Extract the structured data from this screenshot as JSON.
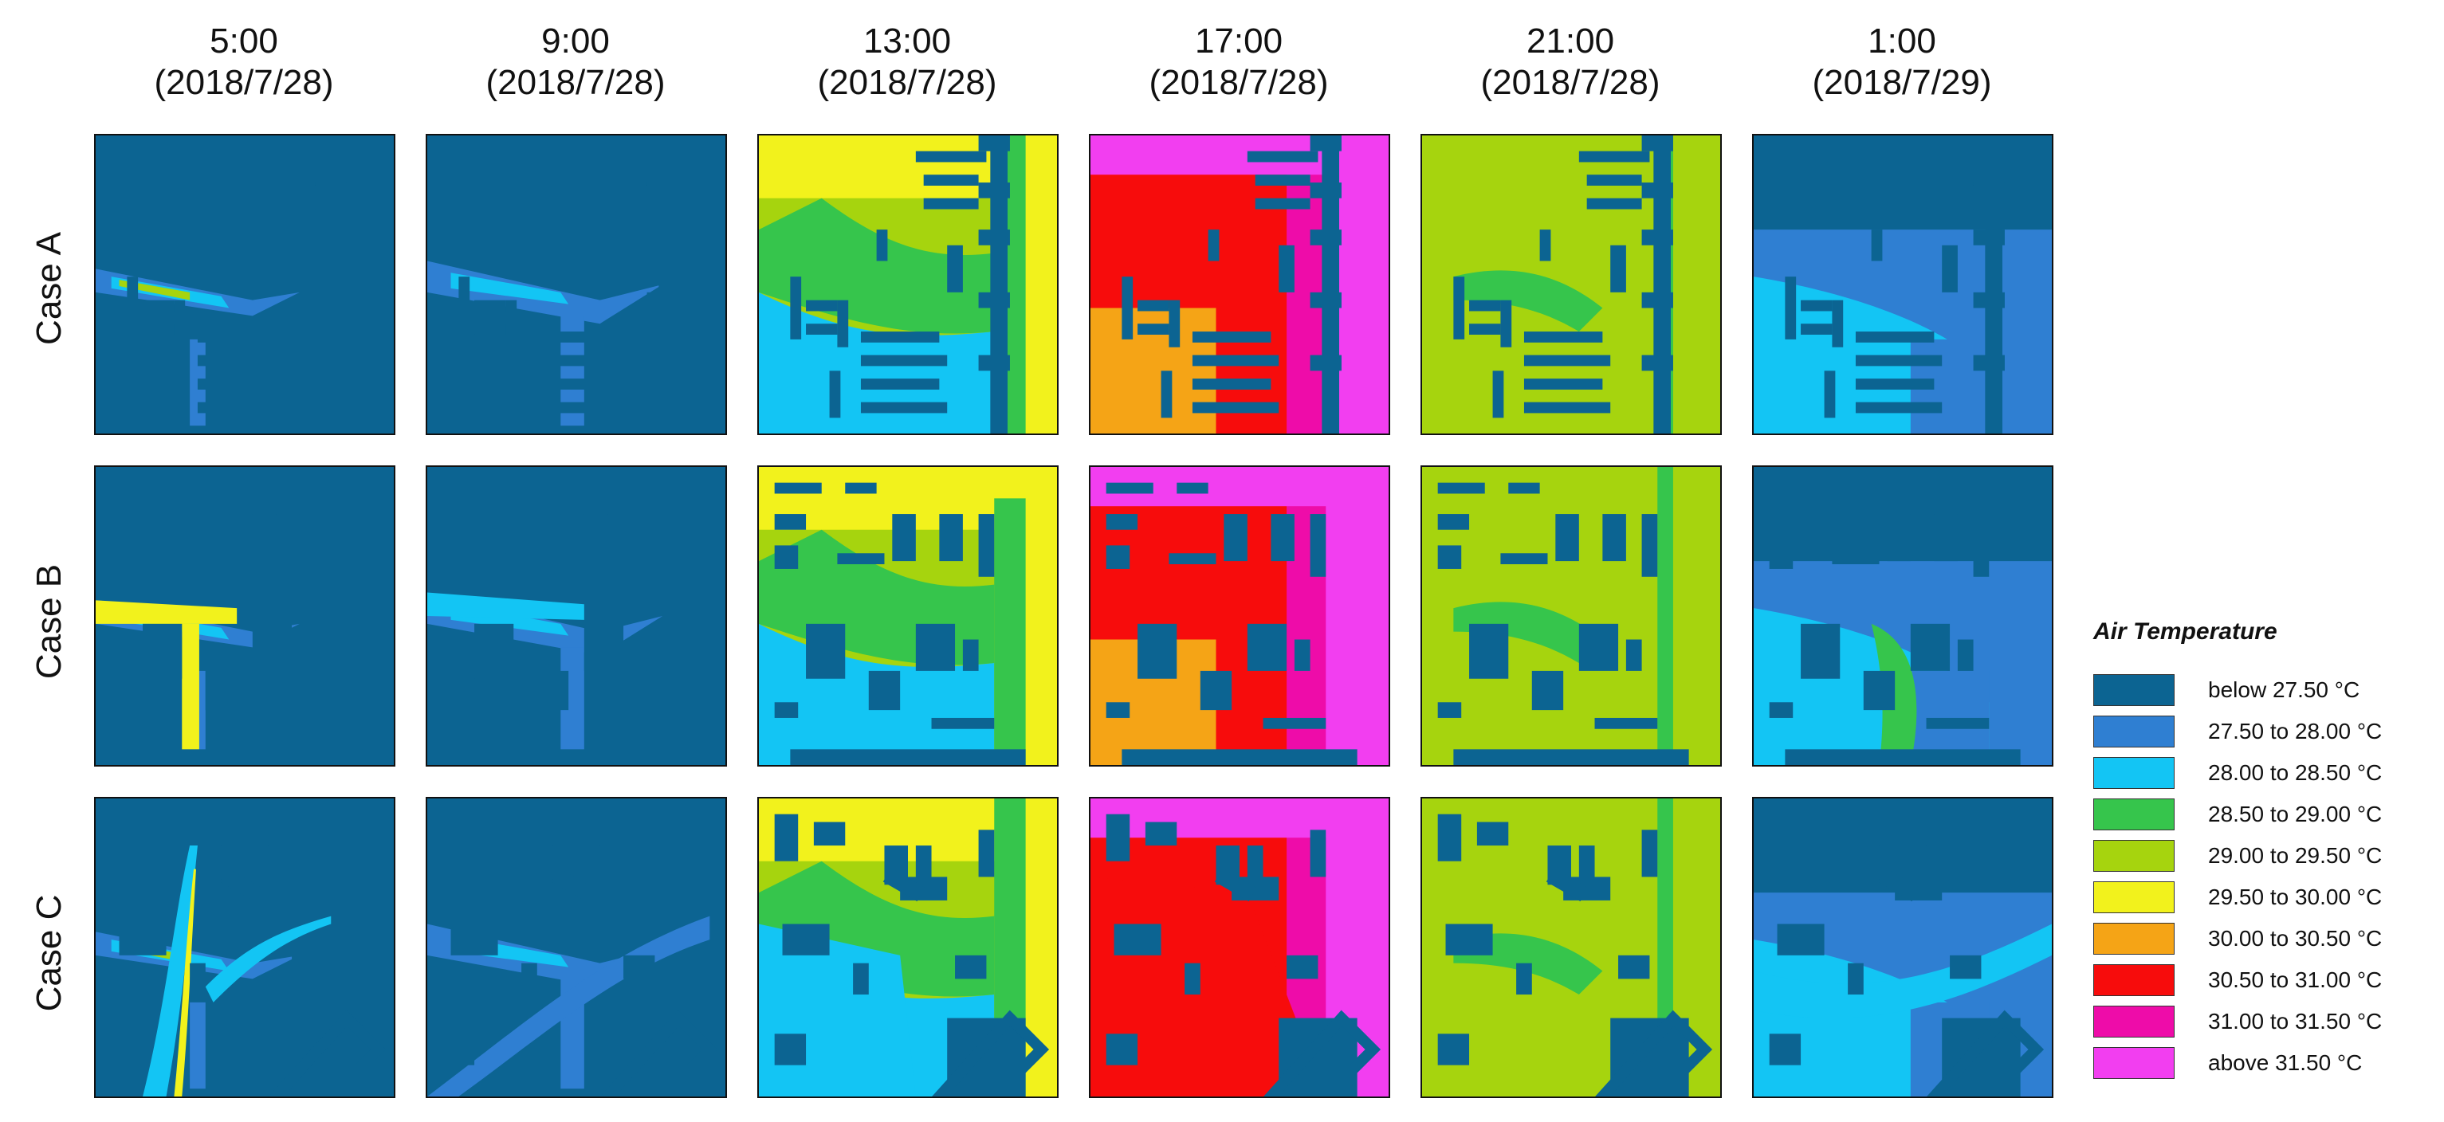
{
  "columns": [
    {
      "time": "5:00",
      "date": "(2018/7/28)"
    },
    {
      "time": "9:00",
      "date": "(2018/7/28)"
    },
    {
      "time": "13:00",
      "date": "(2018/7/28)"
    },
    {
      "time": "17:00",
      "date": "(2018/7/28)"
    },
    {
      "time": "21:00",
      "date": "(2018/7/28)"
    },
    {
      "time": "1:00",
      "date": "(2018/7/29)"
    }
  ],
  "rows": [
    {
      "label": "Case A"
    },
    {
      "label": "Case B"
    },
    {
      "label": "Case C"
    }
  ],
  "legend": {
    "title": "Air Temperature",
    "items": [
      {
        "label": "below 27.50 °C",
        "color": "#0c6492"
      },
      {
        "label": "27.50 to 28.00 °C",
        "color": "#2f7fd2"
      },
      {
        "label": "28.00 to 28.50 °C",
        "color": "#13c5f4"
      },
      {
        "label": "28.50 to 29.00 °C",
        "color": "#36c54c"
      },
      {
        "label": "29.00 to 29.50 °C",
        "color": "#a6d40e"
      },
      {
        "label": "29.50 to 30.00 °C",
        "color": "#f2f21c"
      },
      {
        "label": "30.00 to 30.50 °C",
        "color": "#f5a416"
      },
      {
        "label": "30.50 to 31.00 °C",
        "color": "#f70c0c"
      },
      {
        "label": "31.00 to 31.50 °C",
        "color": "#ee0ca9"
      },
      {
        "label": "above 31.50 °C",
        "color": "#f23ef0"
      }
    ]
  }
}
